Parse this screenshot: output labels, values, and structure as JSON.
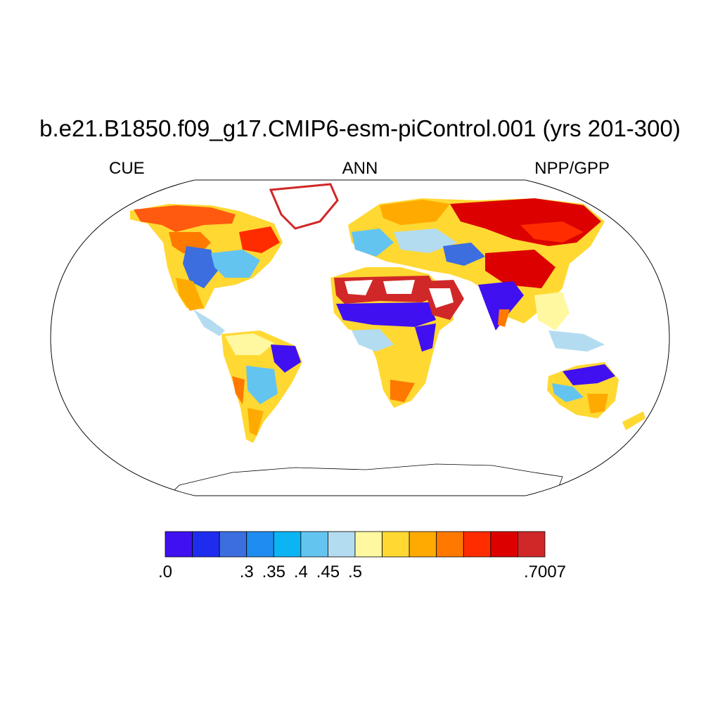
{
  "title": "b.e21.B1850.f09_g17.CMIP6-esm-piControl.001 (yrs 201-300)",
  "left_string": "CUE",
  "center_string": "ANN",
  "right_string": "NPP/GPP",
  "colorbar": {
    "colors": [
      "#4010f0",
      "#1e2cf0",
      "#3c6ee0",
      "#1e8cf0",
      "#0cb4f4",
      "#64c4f0",
      "#b4dcf0",
      "#fff8a0",
      "#ffd832",
      "#ffaa00",
      "#ff7800",
      "#ff2c00",
      "#dc0000",
      "#d02828"
    ],
    "labels": [
      ".0",
      ".3",
      ".35",
      ".4",
      ".45",
      ".5",
      ".7007"
    ],
    "label_boxes": [
      0,
      3,
      4,
      5,
      6,
      7,
      9
    ]
  }
}
